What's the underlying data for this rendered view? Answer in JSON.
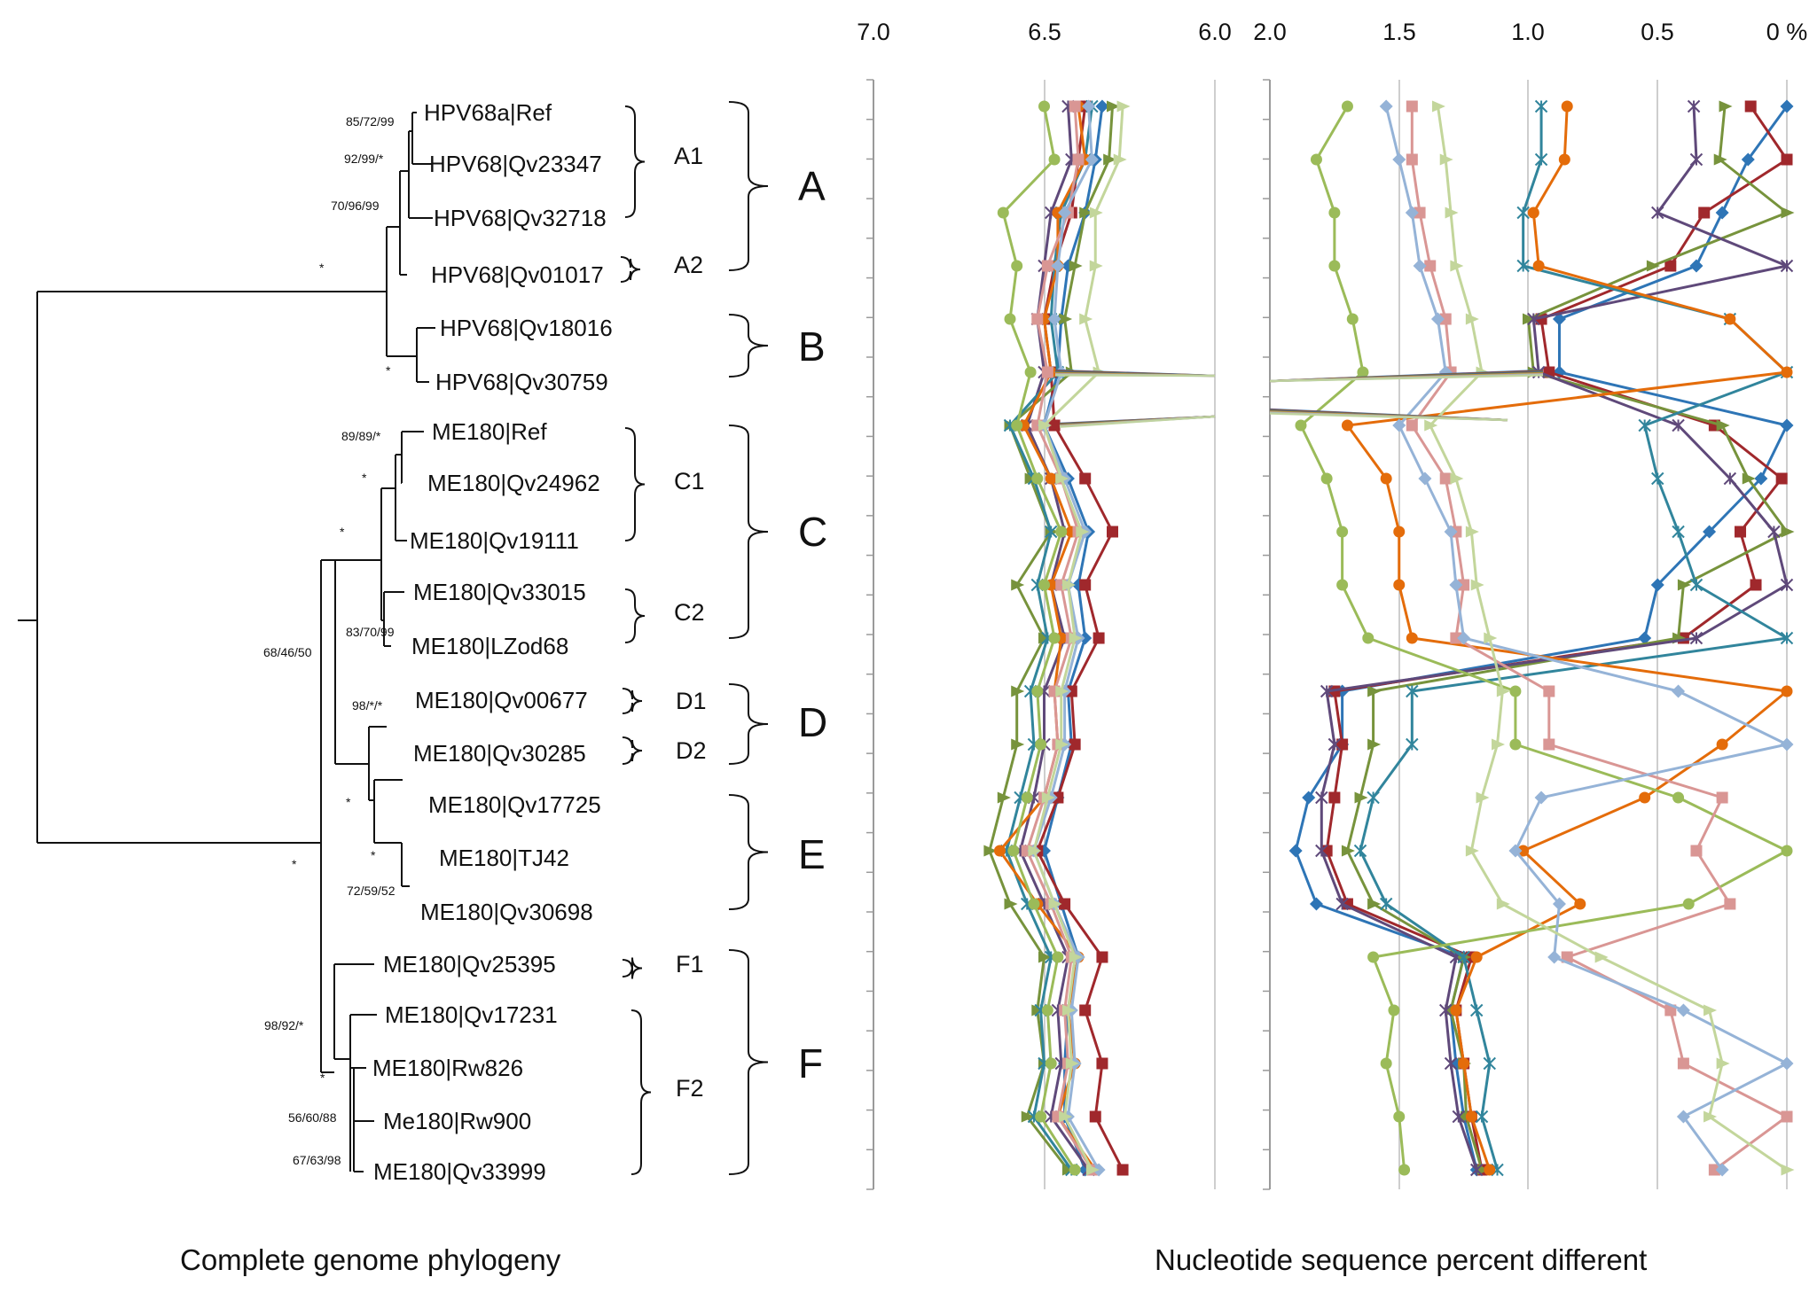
{
  "captions": {
    "left": "Complete genome phylogeny",
    "right": "Nucleotide sequence percent different"
  },
  "tree": {
    "taxa": [
      "HPV68a|Ref",
      "HPV68|Qv23347",
      "HPV68|Qv32718",
      "HPV68|Qv01017",
      "HPV68|Qv18016",
      "HPV68|Qv30759",
      "ME180|Ref",
      "ME180|Qv24962",
      "ME180|Qv19111",
      "ME180|Qv33015",
      "ME180|LZod68",
      "ME180|Qv00677",
      "ME180|Qv30285",
      "ME180|Qv17725",
      "ME180|TJ42",
      "ME180|Qv30698",
      "ME180|Qv25395",
      "ME180|Qv17231",
      "ME180|Rw826",
      "Me180|Rw900",
      "ME180|Qv33999"
    ],
    "support_values": [
      "85/72/99",
      "92/99/*",
      "70/96/99",
      "*",
      "*",
      "89/89/*",
      "*",
      "*",
      "83/70/99",
      "68/46/50",
      "98/*/*",
      "*",
      "*",
      "72/59/52",
      "*",
      "98/92/*",
      "*",
      "56/60/88",
      "67/63/98"
    ],
    "subclades": [
      "A1",
      "A2",
      "C1",
      "C2",
      "D1",
      "D2",
      "F1",
      "F2"
    ],
    "clades": [
      "A",
      "B",
      "C",
      "D",
      "E",
      "F"
    ]
  },
  "chart_data": [
    {
      "type": "line",
      "panel": "left-scale",
      "x_ticks": [
        "7.0",
        "6.5",
        "6.0"
      ],
      "xlim": [
        7.0,
        6.0
      ],
      "xlabel": "",
      "grid": true,
      "note_rows": 21,
      "series": [
        {
          "color": "#2E75B6",
          "marker": "diamond",
          "values": [
            6.33,
            6.35,
            6.38,
            6.43,
            6.45,
            6.46,
            6.5,
            6.43,
            6.37,
            6.4,
            6.38,
            6.43,
            6.42,
            6.46,
            6.5,
            6.45,
            6.4,
            6.43,
            6.44,
            6.44,
            6.38
          ]
        },
        {
          "color": "#A0282C",
          "marker": "square",
          "values": [
            6.38,
            6.4,
            6.42,
            6.47,
            6.5,
            6.48,
            6.47,
            6.38,
            6.3,
            6.38,
            6.34,
            6.42,
            6.41,
            6.46,
            6.52,
            6.44,
            6.33,
            6.38,
            6.33,
            6.35,
            6.27
          ]
        },
        {
          "color": "#77933C",
          "marker": "triangle",
          "values": [
            6.3,
            6.31,
            6.38,
            6.41,
            6.44,
            6.42,
            6.6,
            6.54,
            6.48,
            6.58,
            6.5,
            6.58,
            6.58,
            6.62,
            6.66,
            6.6,
            6.5,
            6.52,
            6.5,
            6.55,
            6.43
          ]
        },
        {
          "color": "#5F497A",
          "marker": "x",
          "values": [
            6.43,
            6.42,
            6.48,
            6.5,
            6.52,
            6.5,
            6.55,
            6.48,
            6.44,
            6.48,
            6.44,
            6.5,
            6.5,
            6.53,
            6.57,
            6.5,
            6.43,
            6.46,
            6.45,
            6.48,
            6.37
          ]
        },
        {
          "color": "#31859C",
          "marker": "x",
          "values": [
            6.36,
            6.38,
            6.45,
            6.47,
            6.48,
            6.46,
            6.6,
            6.53,
            6.48,
            6.52,
            6.49,
            6.54,
            6.53,
            6.57,
            6.61,
            6.55,
            6.48,
            6.51,
            6.5,
            6.53,
            6.42
          ]
        },
        {
          "color": "#E46C0A",
          "marker": "circle",
          "values": [
            6.4,
            6.38,
            6.46,
            6.46,
            6.5,
            6.48,
            6.56,
            6.48,
            6.42,
            6.48,
            6.45,
            6.47,
            6.46,
            6.5,
            6.63,
            6.52,
            6.4,
            6.43,
            6.41,
            6.46,
            6.35
          ]
        },
        {
          "color": "#9BBB59",
          "marker": "circle",
          "values": [
            6.5,
            6.47,
            6.62,
            6.58,
            6.6,
            6.54,
            6.58,
            6.52,
            6.45,
            6.5,
            6.47,
            6.52,
            6.51,
            6.55,
            6.59,
            6.53,
            6.46,
            6.49,
            6.48,
            6.51,
            6.41
          ]
        },
        {
          "color": "#D99694",
          "marker": "square",
          "values": [
            6.41,
            6.4,
            6.43,
            6.49,
            6.52,
            6.49,
            6.52,
            6.45,
            6.4,
            6.45,
            6.42,
            6.47,
            6.46,
            6.5,
            6.55,
            6.48,
            6.42,
            6.44,
            6.43,
            6.46,
            6.36
          ]
        },
        {
          "color": "#95B3D7",
          "marker": "diamond",
          "values": [
            6.37,
            6.36,
            6.44,
            6.46,
            6.47,
            6.45,
            6.5,
            6.44,
            6.38,
            6.43,
            6.4,
            6.44,
            6.44,
            6.48,
            6.53,
            6.47,
            6.4,
            6.42,
            6.41,
            6.43,
            6.34
          ]
        },
        {
          "color": "#C3D69B",
          "marker": "triangle",
          "values": [
            6.27,
            6.28,
            6.35,
            6.35,
            6.38,
            6.34,
            6.5,
            6.45,
            6.39,
            6.43,
            6.41,
            6.45,
            6.45,
            6.49,
            6.53,
            6.47,
            6.41,
            6.43,
            6.42,
            6.44,
            6.36
          ]
        }
      ]
    },
    {
      "type": "line",
      "panel": "right-scale",
      "x_ticks": [
        "2.0",
        "1.5",
        "1.0",
        "0.5",
        "0 %"
      ],
      "xlim": [
        2.0,
        0.0
      ],
      "xlabel": "",
      "grid": true,
      "series": [
        {
          "color": "#2E75B6",
          "marker": "diamond",
          "values": [
            0.0,
            0.15,
            0.25,
            0.35,
            0.88,
            0.88,
            0.0,
            0.1,
            0.3,
            0.5,
            0.55,
            1.72,
            1.72,
            1.85,
            1.9,
            1.82,
            1.25,
            1.3,
            1.28,
            1.25,
            1.2
          ]
        },
        {
          "color": "#A0282C",
          "marker": "square",
          "values": [
            0.14,
            0.0,
            0.32,
            0.45,
            0.95,
            0.92,
            0.28,
            0.02,
            0.18,
            0.12,
            0.4,
            1.75,
            1.72,
            1.75,
            1.78,
            1.7,
            1.22,
            1.28,
            1.25,
            1.22,
            1.18
          ]
        },
        {
          "color": "#77933C",
          "marker": "triangle",
          "values": [
            0.24,
            0.26,
            0.0,
            0.52,
            1.0,
            0.98,
            0.25,
            0.15,
            0.0,
            0.4,
            0.42,
            1.6,
            1.6,
            1.65,
            1.7,
            1.6,
            1.25,
            1.3,
            1.25,
            1.24,
            1.18
          ]
        },
        {
          "color": "#5F497A",
          "marker": "x",
          "values": [
            0.36,
            0.35,
            0.5,
            0.0,
            0.98,
            0.96,
            0.42,
            0.22,
            0.05,
            0.0,
            0.35,
            1.78,
            1.75,
            1.8,
            1.8,
            1.72,
            1.28,
            1.32,
            1.3,
            1.27,
            1.2
          ]
        },
        {
          "color": "#31859C",
          "marker": "x",
          "values": [
            0.95,
            0.95,
            1.02,
            1.02,
            0.22,
            0.0,
            0.55,
            0.5,
            0.42,
            0.35,
            0.0,
            1.45,
            1.45,
            1.6,
            1.65,
            1.55,
            1.25,
            1.2,
            1.15,
            1.18,
            1.12
          ]
        },
        {
          "color": "#E46C0A",
          "marker": "circle",
          "values": [
            0.85,
            0.86,
            0.98,
            0.96,
            0.22,
            0.0,
            1.7,
            1.55,
            1.5,
            1.5,
            1.45,
            0.0,
            0.25,
            0.55,
            1.02,
            0.8,
            1.2,
            1.28,
            1.25,
            1.22,
            1.15
          ]
        },
        {
          "color": "#9BBB59",
          "marker": "circle",
          "values": [
            1.7,
            1.82,
            1.75,
            1.75,
            1.68,
            1.64,
            1.88,
            1.78,
            1.72,
            1.72,
            1.62,
            1.05,
            1.05,
            0.42,
            0.0,
            0.38,
            1.6,
            1.52,
            1.55,
            1.5,
            1.48
          ]
        },
        {
          "color": "#D99694",
          "marker": "square",
          "values": [
            1.45,
            1.45,
            1.42,
            1.38,
            1.32,
            1.3,
            1.45,
            1.32,
            1.28,
            1.25,
            1.28,
            0.92,
            0.92,
            0.25,
            0.35,
            0.22,
            0.85,
            0.45,
            0.4,
            0.0,
            0.28
          ]
        },
        {
          "color": "#95B3D7",
          "marker": "diamond",
          "values": [
            1.55,
            1.5,
            1.45,
            1.42,
            1.35,
            1.32,
            1.5,
            1.4,
            1.3,
            1.28,
            1.25,
            0.42,
            0.0,
            0.95,
            1.05,
            0.88,
            0.9,
            0.4,
            0.0,
            0.4,
            0.25
          ]
        },
        {
          "color": "#C3D69B",
          "marker": "triangle",
          "values": [
            1.35,
            1.32,
            1.3,
            1.28,
            1.22,
            1.18,
            1.38,
            1.28,
            1.22,
            1.2,
            1.15,
            1.1,
            1.12,
            1.18,
            1.22,
            1.1,
            0.72,
            0.3,
            0.25,
            0.3,
            0.0
          ]
        }
      ]
    }
  ]
}
